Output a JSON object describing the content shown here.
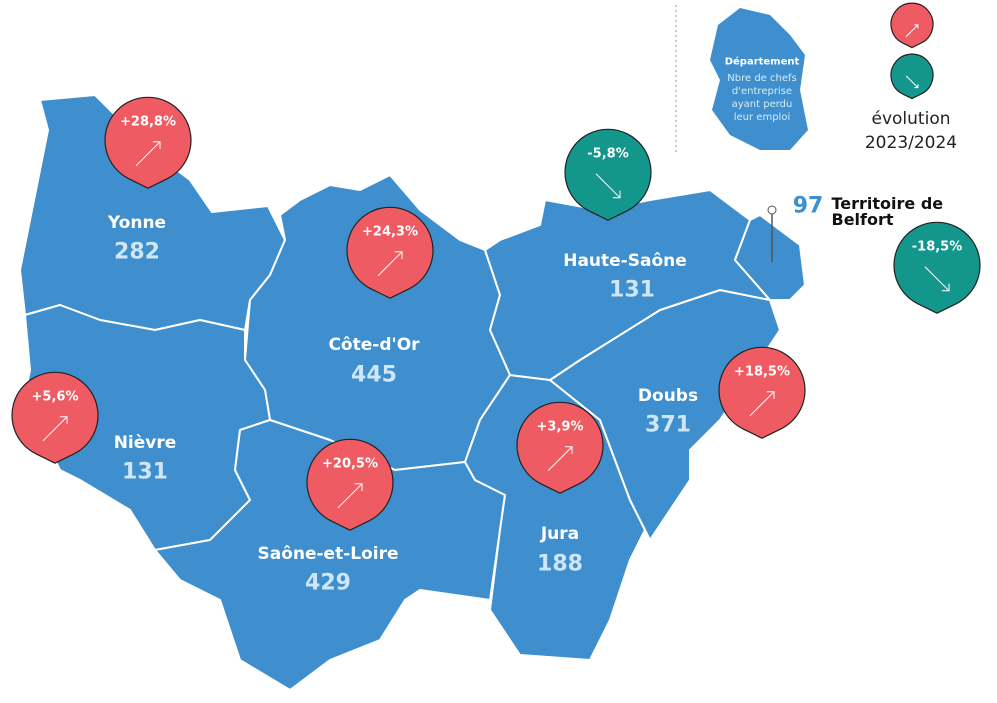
{
  "legend": {
    "title": "Département",
    "description": "Nbre de chefs d'entreprise ayant perdu leur emploi",
    "evolution": "évolution",
    "period": "2023/2024",
    "up_color": "#ef5b63",
    "down_color": "#13968c"
  },
  "departments": [
    {
      "name": "Yonne",
      "count": "282",
      "evolution": "+28,8%",
      "color": "#ef5b63"
    },
    {
      "name": "Côte-d'Or",
      "count": "445",
      "evolution": "+24,3%",
      "color": "#ef5b63"
    },
    {
      "name": "Haute-Saône",
      "count": "131",
      "evolution": "-5,8%",
      "color": "#13968c"
    },
    {
      "name": "Nièvre",
      "count": "131",
      "evolution": "+5,6%",
      "color": "#ef5b63"
    },
    {
      "name": "Saône-et-Loire",
      "count": "429",
      "evolution": "+20,5%",
      "color": "#ef5b63"
    },
    {
      "name": "Jura",
      "count": "188",
      "evolution": "+3,9%",
      "color": "#ef5b63"
    },
    {
      "name": "Doubs",
      "count": "371",
      "evolution": "+18,5%",
      "color": "#ef5b63"
    },
    {
      "name": "Territoire de Belfort",
      "count": "97",
      "evolution": "-18,5%",
      "color": "#13968c"
    }
  ]
}
